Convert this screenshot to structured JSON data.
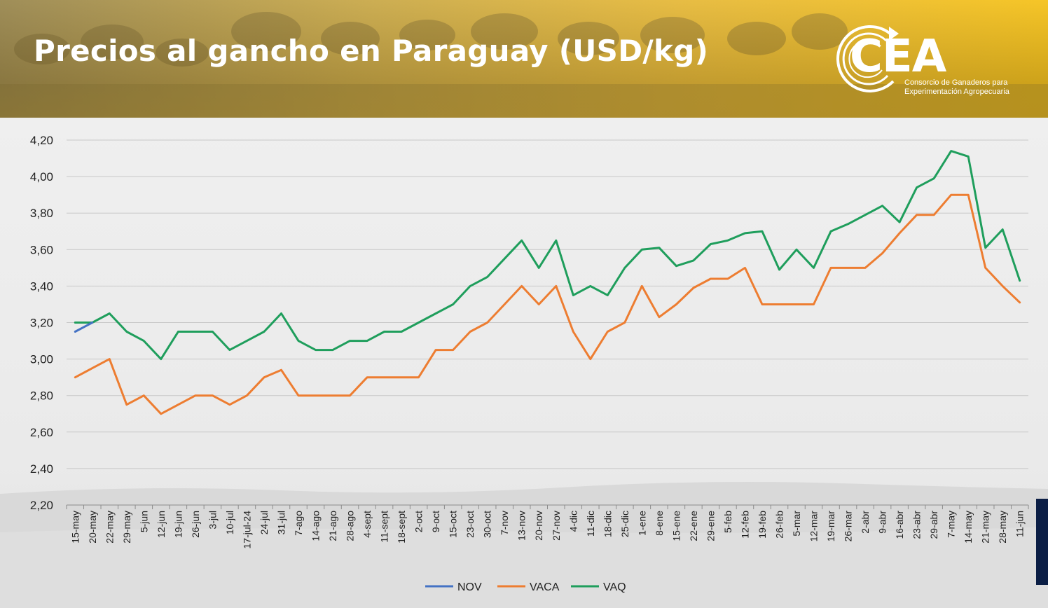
{
  "header": {
    "title": "Precios al gancho en Paraguay (USD/kg)"
  },
  "logo": {
    "mark": "CEA",
    "line1": "Consorcio de Ganaderos para",
    "line2": "Experimentación Agropecuaria"
  },
  "colors": {
    "NOV": "#4472c4",
    "VACA": "#ed7d31",
    "VAQ": "#1f9e5c",
    "grid": "#c8c8c8",
    "accent_bar": "#0b1e45"
  },
  "chart_data": {
    "type": "line",
    "title": "",
    "xlabel": "",
    "ylabel": "",
    "ylim": [
      2.2,
      4.2
    ],
    "yticks": [
      2.2,
      2.4,
      2.6,
      2.8,
      3.0,
      3.2,
      3.4,
      3.6,
      3.8,
      4.0,
      4.2
    ],
    "ytick_labels": [
      "2,20",
      "2,40",
      "2,60",
      "2,80",
      "3,00",
      "3,20",
      "3,40",
      "3,60",
      "3,80",
      "4,00",
      "4,20"
    ],
    "grid": "horizontal",
    "legend": "bottom-center",
    "categories": [
      "15-may",
      "20-may",
      "22-may",
      "29-may",
      "5-jun",
      "12-jun",
      "19-jun",
      "26-jun",
      "3-jul",
      "10-jul",
      "17-jul-24",
      "24-jul",
      "31-jul",
      "7-ago",
      "14-ago",
      "21-ago",
      "28-ago",
      "4-sept",
      "11-sept",
      "18-sept",
      "2-oct",
      "9-oct",
      "15-oct",
      "23-oct",
      "30-oct",
      "7-nov",
      "13-nov",
      "20-nov",
      "27-nov",
      "4-dic",
      "11-dic",
      "18-dic",
      "25-dic",
      "1-ene",
      "8-ene",
      "15-ene",
      "22-ene",
      "29-ene",
      "5-feb",
      "12-feb",
      "19-feb",
      "26-feb",
      "5-mar",
      "12-mar",
      "19-mar",
      "26-mar",
      "2-abr",
      "9-abr",
      "16-abr",
      "23-abr",
      "29-abr",
      "7-may",
      "14-may",
      "21-may",
      "28-may",
      "11-jun"
    ],
    "series": [
      {
        "name": "NOV",
        "values": [
          3.15,
          3.2,
          null,
          null,
          null,
          null,
          null,
          null,
          null,
          null,
          null,
          null,
          null,
          null,
          null,
          null,
          null,
          null,
          null,
          null,
          null,
          null,
          null,
          null,
          null,
          null,
          null,
          null,
          null,
          null,
          null,
          null,
          null,
          null,
          null,
          null,
          null,
          null,
          null,
          null,
          null,
          null,
          null,
          null,
          null,
          null,
          null,
          null,
          null,
          null,
          null,
          null,
          null,
          null,
          null,
          null
        ]
      },
      {
        "name": "VACA",
        "values": [
          2.9,
          2.95,
          3.0,
          2.75,
          2.8,
          2.7,
          2.75,
          2.8,
          2.8,
          2.75,
          2.8,
          2.9,
          2.94,
          2.8,
          2.8,
          2.8,
          2.8,
          2.9,
          2.9,
          2.9,
          2.9,
          3.05,
          3.05,
          3.15,
          3.2,
          3.3,
          3.4,
          3.3,
          3.4,
          3.15,
          3.0,
          3.15,
          3.2,
          3.4,
          3.23,
          3.3,
          3.39,
          3.44,
          3.44,
          3.5,
          3.3,
          3.3,
          3.3,
          3.3,
          3.5,
          3.5,
          3.5,
          3.58,
          3.69,
          3.79,
          3.79,
          3.9,
          3.9,
          3.5,
          3.4,
          3.31
        ]
      },
      {
        "name": "VAQ",
        "values": [
          3.2,
          3.2,
          3.25,
          3.15,
          3.1,
          3.0,
          3.15,
          3.15,
          3.15,
          3.05,
          3.1,
          3.15,
          3.25,
          3.1,
          3.05,
          3.05,
          3.1,
          3.1,
          3.15,
          3.15,
          3.2,
          3.25,
          3.3,
          3.4,
          3.45,
          3.55,
          3.65,
          3.5,
          3.65,
          3.35,
          3.4,
          3.35,
          3.5,
          3.6,
          3.61,
          3.51,
          3.54,
          3.63,
          3.65,
          3.69,
          3.7,
          3.49,
          3.6,
          3.5,
          3.7,
          3.74,
          3.79,
          3.84,
          3.75,
          3.94,
          3.99,
          4.14,
          4.11,
          3.61,
          3.71,
          3.43
        ]
      }
    ]
  }
}
